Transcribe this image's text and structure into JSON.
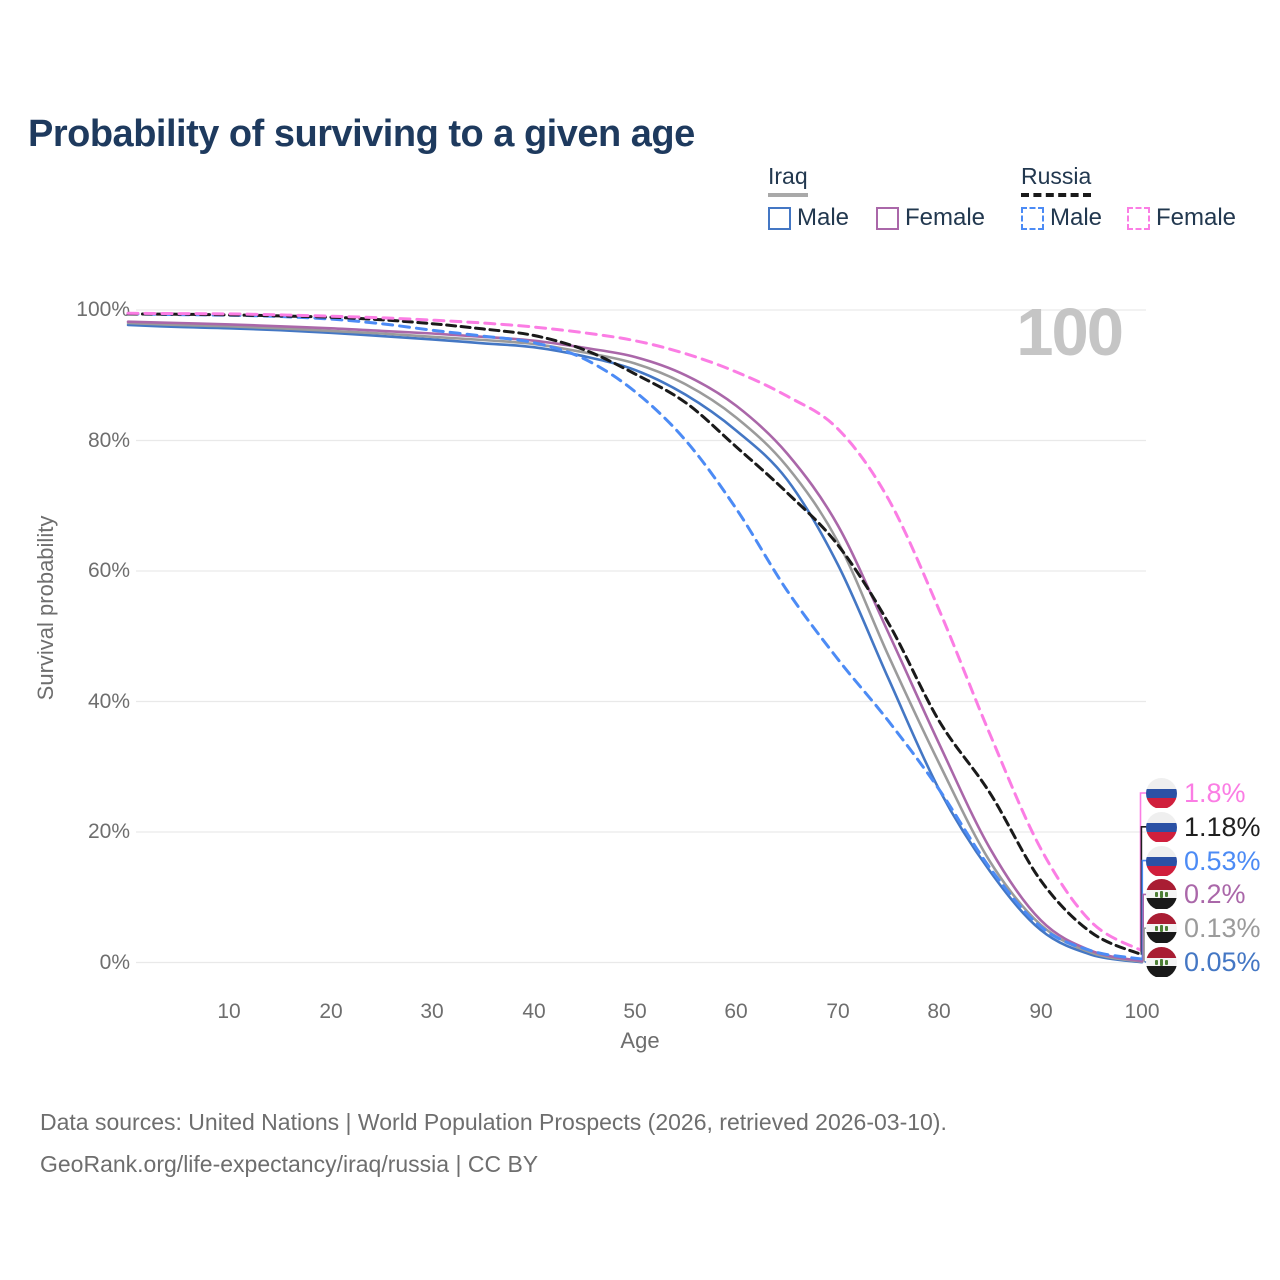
{
  "title": "Probability of surviving to a given age",
  "watermark_age": "100",
  "legend": {
    "groups": [
      {
        "label": "Iraq",
        "underline_style": "solid",
        "underline_color": "#a9a9a9",
        "items": [
          {
            "label": "Male",
            "color": "#4477c4",
            "line_style": "solid"
          },
          {
            "label": "Female",
            "color": "#aa67a9",
            "line_style": "solid"
          }
        ]
      },
      {
        "label": "Russia",
        "underline_style": "dashed",
        "underline_color": "#1a1a1a",
        "items": [
          {
            "label": "Male",
            "color": "#4c8bf5",
            "line_style": "dashed"
          },
          {
            "label": "Female",
            "color": "#fb7de4",
            "line_style": "dashed"
          }
        ]
      }
    ]
  },
  "chart_data": {
    "type": "line",
    "title": "Probability of surviving to a given age",
    "xlabel": "Age",
    "ylabel": "Survival probability",
    "xlim": [
      0,
      100
    ],
    "ylim": [
      0,
      100
    ],
    "grid": "horizontal-only",
    "legend_position": "top-right",
    "x": [
      0,
      5,
      10,
      15,
      20,
      25,
      30,
      35,
      40,
      45,
      50,
      55,
      60,
      65,
      70,
      75,
      80,
      85,
      90,
      95,
      100
    ],
    "x_tick_values": [
      10,
      20,
      30,
      40,
      50,
      60,
      70,
      80,
      90,
      100
    ],
    "x_tick_labels": [
      "10",
      "20",
      "30",
      "40",
      "50",
      "60",
      "70",
      "80",
      "90",
      "100"
    ],
    "y_tick_values": [
      100,
      80,
      60,
      40,
      20,
      0
    ],
    "y_tick_labels": [
      "100%",
      "80%",
      "60%",
      "40%",
      "20%",
      "0%"
    ],
    "series": [
      {
        "id": "iraq-male",
        "country": "Iraq",
        "sex": "Male",
        "color": "#4477c4",
        "dashed": false,
        "values": [
          97.7,
          97.4,
          97.2,
          96.9,
          96.5,
          96.0,
          95.5,
          94.9,
          94.3,
          92.9,
          90.8,
          87.0,
          81.5,
          74.0,
          61.0,
          43.5,
          26.5,
          14.0,
          5.0,
          1.2,
          0.05
        ]
      },
      {
        "id": "iraq-total",
        "country": "Iraq",
        "sex": "Both sexes",
        "color": "#9b9b9b",
        "dashed": false,
        "values": [
          98.0,
          97.7,
          97.5,
          97.2,
          96.8,
          96.4,
          95.9,
          95.4,
          94.8,
          93.5,
          91.8,
          88.6,
          83.5,
          76.0,
          64.5,
          47.0,
          30.5,
          15.5,
          5.8,
          1.5,
          0.13
        ]
      },
      {
        "id": "iraq-female",
        "country": "Iraq",
        "sex": "Female",
        "color": "#aa67a9",
        "dashed": false,
        "values": [
          98.2,
          98.0,
          97.8,
          97.5,
          97.2,
          96.8,
          96.4,
          95.9,
          95.3,
          94.2,
          92.8,
          90.0,
          85.3,
          78.0,
          67.0,
          50.5,
          33.5,
          17.5,
          6.5,
          1.8,
          0.2
        ]
      },
      {
        "id": "russia-male",
        "country": "Russia",
        "sex": "Male",
        "color": "#4c8bf5",
        "dashed": true,
        "values": [
          99.4,
          99.3,
          99.2,
          99.0,
          98.6,
          97.9,
          96.9,
          96.0,
          95.0,
          92.5,
          87.5,
          80.0,
          69.5,
          57.0,
          46.5,
          37.0,
          26.5,
          14.5,
          5.5,
          1.8,
          0.53
        ]
      },
      {
        "id": "russia-total",
        "country": "Russia",
        "sex": "Both sexes",
        "color": "#1a1a1a",
        "dashed": true,
        "values": [
          99.4,
          99.35,
          99.25,
          99.1,
          98.9,
          98.5,
          97.9,
          97.1,
          96.1,
          93.9,
          90.2,
          85.8,
          79.0,
          72.0,
          64.0,
          52.0,
          37.0,
          26.0,
          12.6,
          4.6,
          1.18
        ]
      },
      {
        "id": "russia-female",
        "country": "Russia",
        "sex": "Female",
        "color": "#fb7de4",
        "dashed": true,
        "values": [
          99.5,
          99.45,
          99.4,
          99.25,
          99.05,
          98.8,
          98.45,
          98.0,
          97.4,
          96.5,
          95.3,
          93.3,
          90.5,
          86.8,
          81.8,
          71.0,
          54.0,
          35.0,
          17.5,
          6.2,
          1.8
        ]
      }
    ]
  },
  "end_labels": [
    {
      "series": "russia-female",
      "text": "1.8%",
      "color": "#fb7de4",
      "flag": "russia"
    },
    {
      "series": "russia-total",
      "text": "1.18%",
      "color": "#1f1f1f",
      "flag": "russia"
    },
    {
      "series": "russia-male",
      "text": "0.53%",
      "color": "#4c8bf5",
      "flag": "russia"
    },
    {
      "series": "iraq-female",
      "text": "0.2%",
      "color": "#aa67a9",
      "flag": "iraq"
    },
    {
      "series": "iraq-total",
      "text": "0.13%",
      "color": "#9b9b9b",
      "flag": "iraq"
    },
    {
      "series": "iraq-male",
      "text": "0.05%",
      "color": "#4477c4",
      "flag": "iraq"
    }
  ],
  "flags": {
    "russia": {
      "stripes": [
        "#efefef",
        "#2b51a5",
        "#d01f3c"
      ]
    },
    "iraq": {
      "stripes": [
        "#a91d33",
        "#f4f4f4",
        "#191919"
      ],
      "emblem": "#4d7f35"
    }
  },
  "footer": {
    "line1": "Data sources: United Nations | World Population Prospects (2026, retrieved 2026-03-10).",
    "line2": "GeoRank.org/life-expectancy/iraq/russia | CC BY"
  }
}
